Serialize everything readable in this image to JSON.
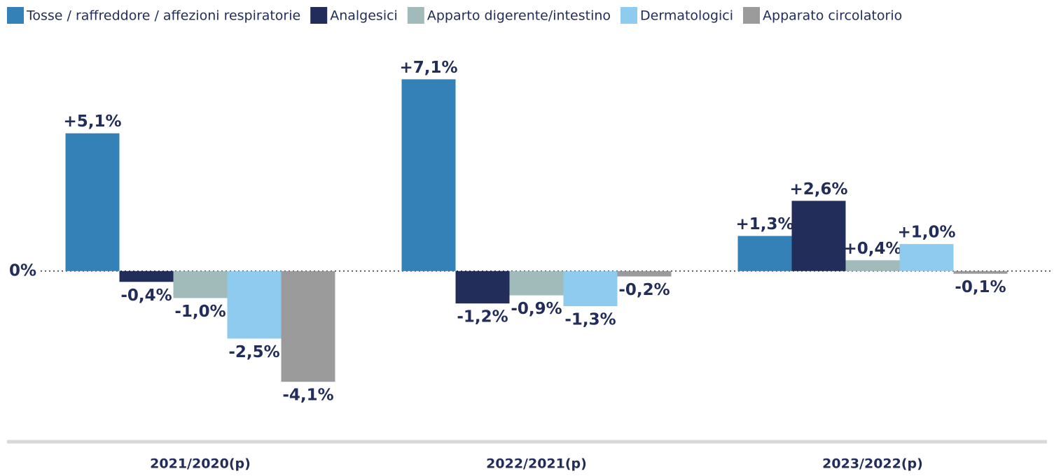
{
  "chart_data": {
    "type": "bar",
    "categories": [
      "2021/2020(p)",
      "2022/2021(p)",
      "2023/2022(p)"
    ],
    "series": [
      {
        "name": "Tosse / raffreddore / affezioni respiratorie",
        "color": "#3481b8",
        "values": [
          5.1,
          7.1,
          1.3
        ],
        "value_labels": [
          "+5,1%",
          "+7,1%",
          "+1,3%"
        ]
      },
      {
        "name": "Analgesici",
        "color": "#232d5a",
        "values": [
          -0.4,
          -1.2,
          2.6
        ],
        "value_labels": [
          "-0,4%",
          "-1,2%",
          "+2,6%"
        ]
      },
      {
        "name": "Apparto digerente/intestino",
        "color": "#a1bbbb",
        "values": [
          -1.0,
          -0.9,
          0.4
        ],
        "value_labels": [
          "-1,0%",
          "-0,9%",
          "+0,4%"
        ]
      },
      {
        "name": "Dermatologici",
        "color": "#8fcbef",
        "values": [
          -2.5,
          -1.3,
          1.0
        ],
        "value_labels": [
          "-2,5%",
          "-1,3%",
          "+1,0%"
        ]
      },
      {
        "name": "Apparato circolatorio",
        "color": "#9b9b9b",
        "values": [
          -4.1,
          -0.2,
          -0.1
        ],
        "value_labels": [
          "-4,1%",
          "-0,2%",
          "-0,1%"
        ]
      }
    ],
    "ylim": [
      -5,
      7.5
    ],
    "yticks": [
      {
        "value": 0,
        "label": "0%"
      }
    ],
    "legend": "top"
  }
}
